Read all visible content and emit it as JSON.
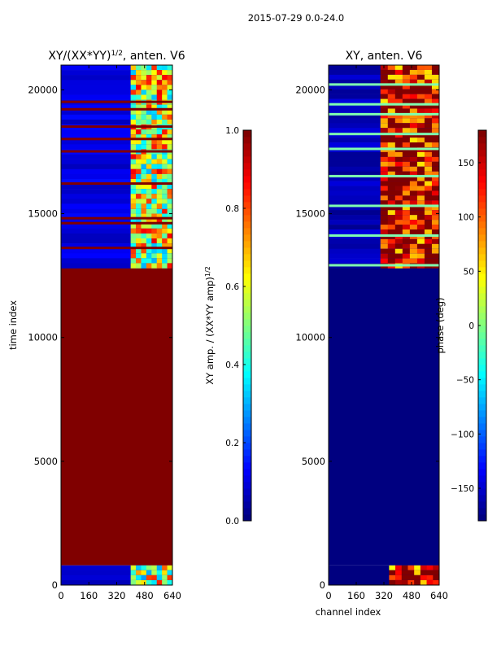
{
  "figure": {
    "suptitle": "2015-07-29 0.0-24.0"
  },
  "chart_data": [
    {
      "type": "heatmap",
      "title": "XY/(XX*YY)",
      "title_sup": "1/2",
      "title_suffix": ", anten. V6",
      "xlabel": "",
      "ylabel": "time index",
      "xlim": [
        0,
        640
      ],
      "ylim": [
        0,
        21000
      ],
      "x_ticks": [
        0,
        160,
        320,
        480,
        640
      ],
      "y_ticks": [
        0,
        5000,
        10000,
        15000,
        20000
      ],
      "colorbar": {
        "label": "XY amp. / (XX*YY amp)",
        "label_sup": "1/2",
        "vmin": 0.0,
        "vmax": 1.0,
        "ticks": [
          "0.0",
          "0.2",
          "0.4",
          "0.6",
          "0.8",
          "1.0"
        ],
        "tick_values": [
          0.0,
          0.2,
          0.4,
          0.6,
          0.8,
          1.0
        ],
        "colormap": "jet"
      },
      "regions": [
        {
          "t0": 0,
          "t1": 800,
          "kind": "noisy",
          "base": 0.08,
          "hot_chan": [
            400,
            640
          ],
          "hot_value": 0.55
        },
        {
          "t0": 800,
          "t1": 12800,
          "kind": "flat",
          "value": 1.0
        },
        {
          "t0": 12800,
          "t1": 15200,
          "kind": "mixed",
          "base": 0.1,
          "hot_chan": [
            400,
            640
          ],
          "hot_value": 0.6,
          "flag_rows": [
            13600,
            14600,
            14800
          ]
        },
        {
          "t0": 15200,
          "t1": 21000,
          "kind": "noisy",
          "base": 0.1,
          "hot_chan": [
            400,
            640
          ],
          "hot_value": 0.6,
          "flag_rows": [
            16200,
            17500,
            18000,
            18500,
            19200,
            19500
          ]
        }
      ]
    },
    {
      "type": "heatmap",
      "title": "XY, anten. V6",
      "xlabel": "channel index",
      "ylabel": "",
      "xlim": [
        0,
        640
      ],
      "ylim": [
        0,
        21000
      ],
      "x_ticks": [
        0,
        160,
        320,
        480,
        640
      ],
      "y_ticks": [
        0,
        5000,
        10000,
        15000,
        20000
      ],
      "colorbar": {
        "label": "phase (deg)",
        "vmin": -180,
        "vmax": 180,
        "ticks": [
          "−150",
          "−100",
          "−50",
          "0",
          "50",
          "100",
          "150"
        ],
        "tick_values": [
          -150,
          -100,
          -50,
          0,
          50,
          100,
          150
        ],
        "colormap": "jet"
      },
      "regions": [
        {
          "t0": 0,
          "t1": 800,
          "kind": "noisy",
          "base": -175,
          "hot_chan": [
            350,
            640
          ],
          "hot_value": 150
        },
        {
          "t0": 800,
          "t1": 12800,
          "kind": "flat",
          "value": -180
        },
        {
          "t0": 12800,
          "t1": 21000,
          "kind": "noisy",
          "base": -160,
          "hot_chan": [
            300,
            640
          ],
          "hot_value": 160,
          "flag_rows": [
            12900,
            14100,
            15300,
            16500,
            17600,
            18200,
            19000,
            19400,
            20200
          ]
        }
      ]
    }
  ]
}
